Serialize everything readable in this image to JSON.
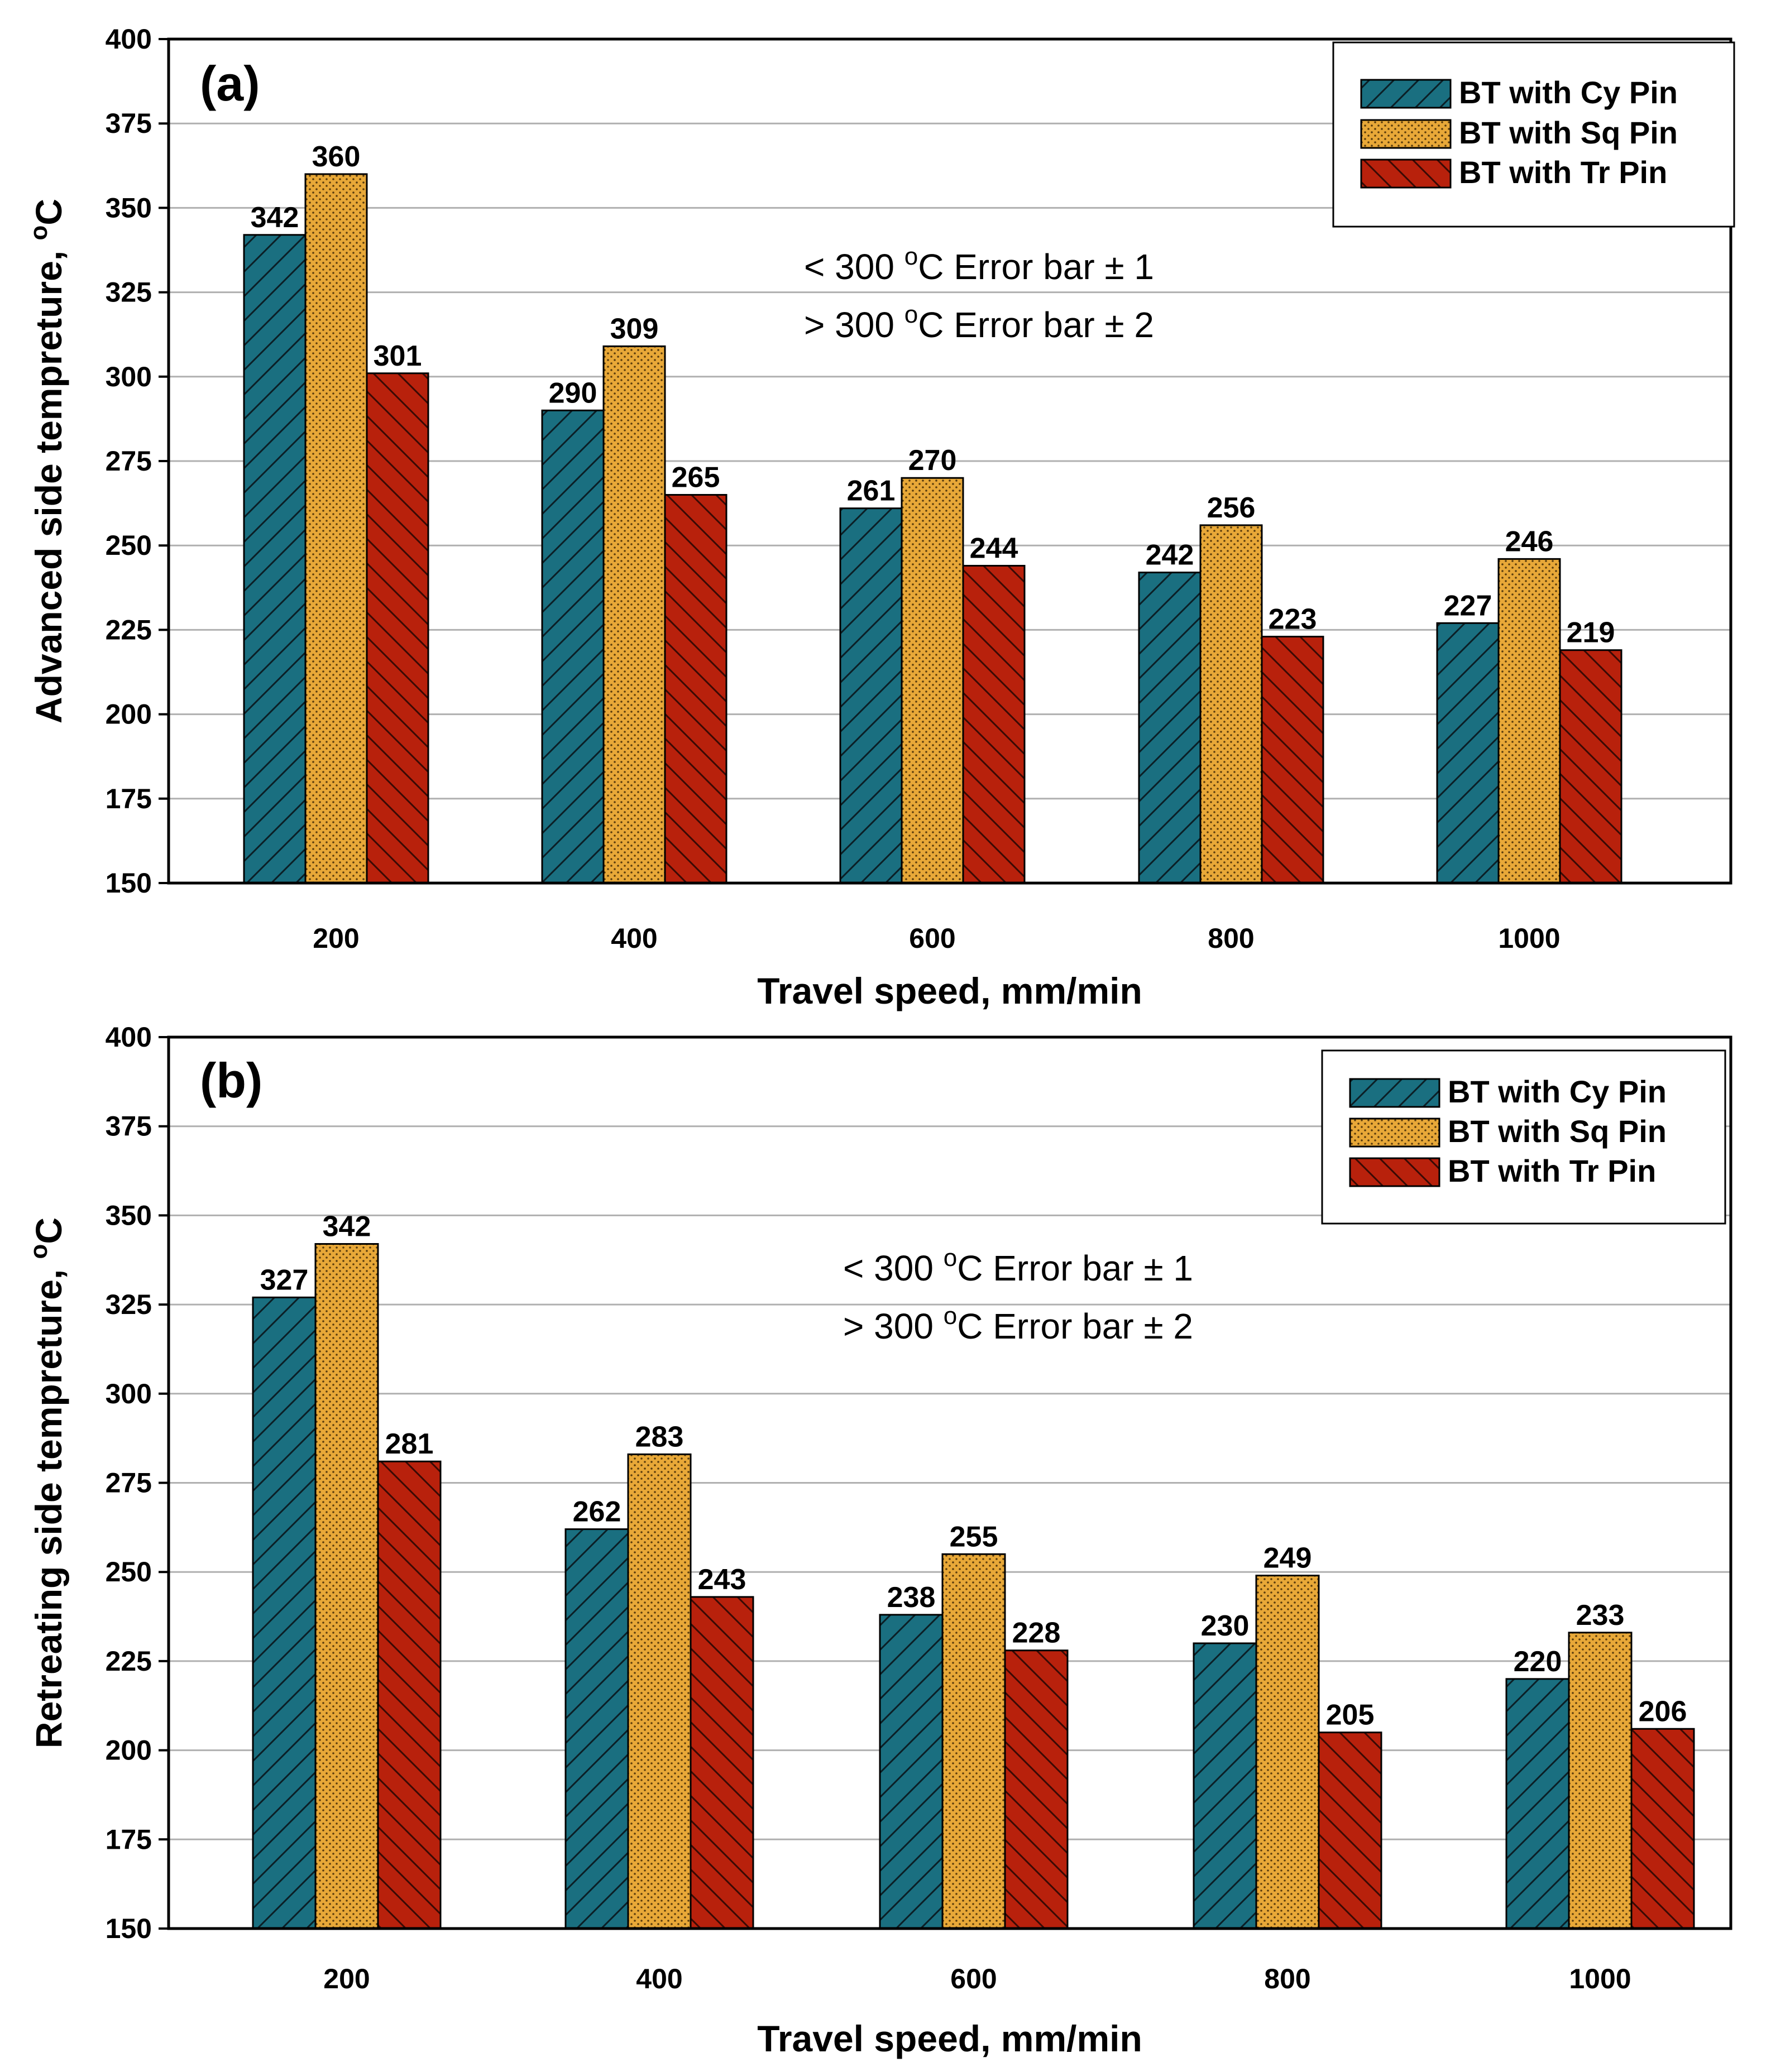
{
  "chart_data": [
    {
      "type": "bar",
      "panel_label": "(a)",
      "categories": [
        "200",
        "400",
        "600",
        "800",
        "1000"
      ],
      "series": [
        {
          "name": "BT with Cy Pin",
          "color": "#1a6f80",
          "pattern": "forward-diagonal",
          "values": [
            342,
            290,
            261,
            242,
            227
          ]
        },
        {
          "name": "BT with Sq Pin",
          "color": "#e8a838",
          "pattern": "dots",
          "values": [
            360,
            309,
            270,
            256,
            246
          ]
        },
        {
          "name": "BT with Tr Pin",
          "color": "#b8210c",
          "pattern": "backward-diagonal",
          "values": [
            301,
            265,
            244,
            223,
            219
          ]
        }
      ],
      "xlabel": "Travel speed, mm/min",
      "ylabel": "Advanced side tempreture, ",
      "ylabel_unit": "C",
      "ylabel_unit_sup": "o",
      "ylim": [
        150,
        400
      ],
      "yticks": [
        "150",
        "175",
        "200",
        "225",
        "250",
        "275",
        "300",
        "325",
        "350",
        "375",
        "400"
      ],
      "grid": true,
      "legend_position": "top-right",
      "annotations": [
        {
          "before": "< 300 ",
          "sup": "o",
          "after": "C Error bar ± 1"
        },
        {
          "before": "> 300 ",
          "sup": "o",
          "after": "C Error bar ± 2"
        }
      ]
    },
    {
      "type": "bar",
      "panel_label": "(b)",
      "categories": [
        "200",
        "400",
        "600",
        "800",
        "1000"
      ],
      "series": [
        {
          "name": "BT with Cy Pin",
          "color": "#1a6f80",
          "pattern": "forward-diagonal",
          "values": [
            327,
            262,
            238,
            230,
            220
          ]
        },
        {
          "name": "BT with Sq Pin",
          "color": "#e8a838",
          "pattern": "dots",
          "values": [
            342,
            283,
            255,
            249,
            233
          ]
        },
        {
          "name": "BT with Tr Pin",
          "color": "#b8210c",
          "pattern": "backward-diagonal",
          "values": [
            281,
            243,
            228,
            205,
            206
          ]
        }
      ],
      "xlabel": "Travel speed, mm/min",
      "ylabel": "Retreating side tempreture, ",
      "ylabel_unit": "C",
      "ylabel_unit_sup": "o",
      "ylim": [
        150,
        400
      ],
      "yticks": [
        "150",
        "175",
        "200",
        "225",
        "250",
        "275",
        "300",
        "325",
        "350",
        "375",
        "400"
      ],
      "grid": true,
      "legend_position": "top-right",
      "annotations": [
        {
          "before": "< 300 ",
          "sup": "o",
          "after": "C Error bar ± 1"
        },
        {
          "before": "> 300 ",
          "sup": "o",
          "after": "C Error bar ± 2"
        }
      ]
    }
  ]
}
